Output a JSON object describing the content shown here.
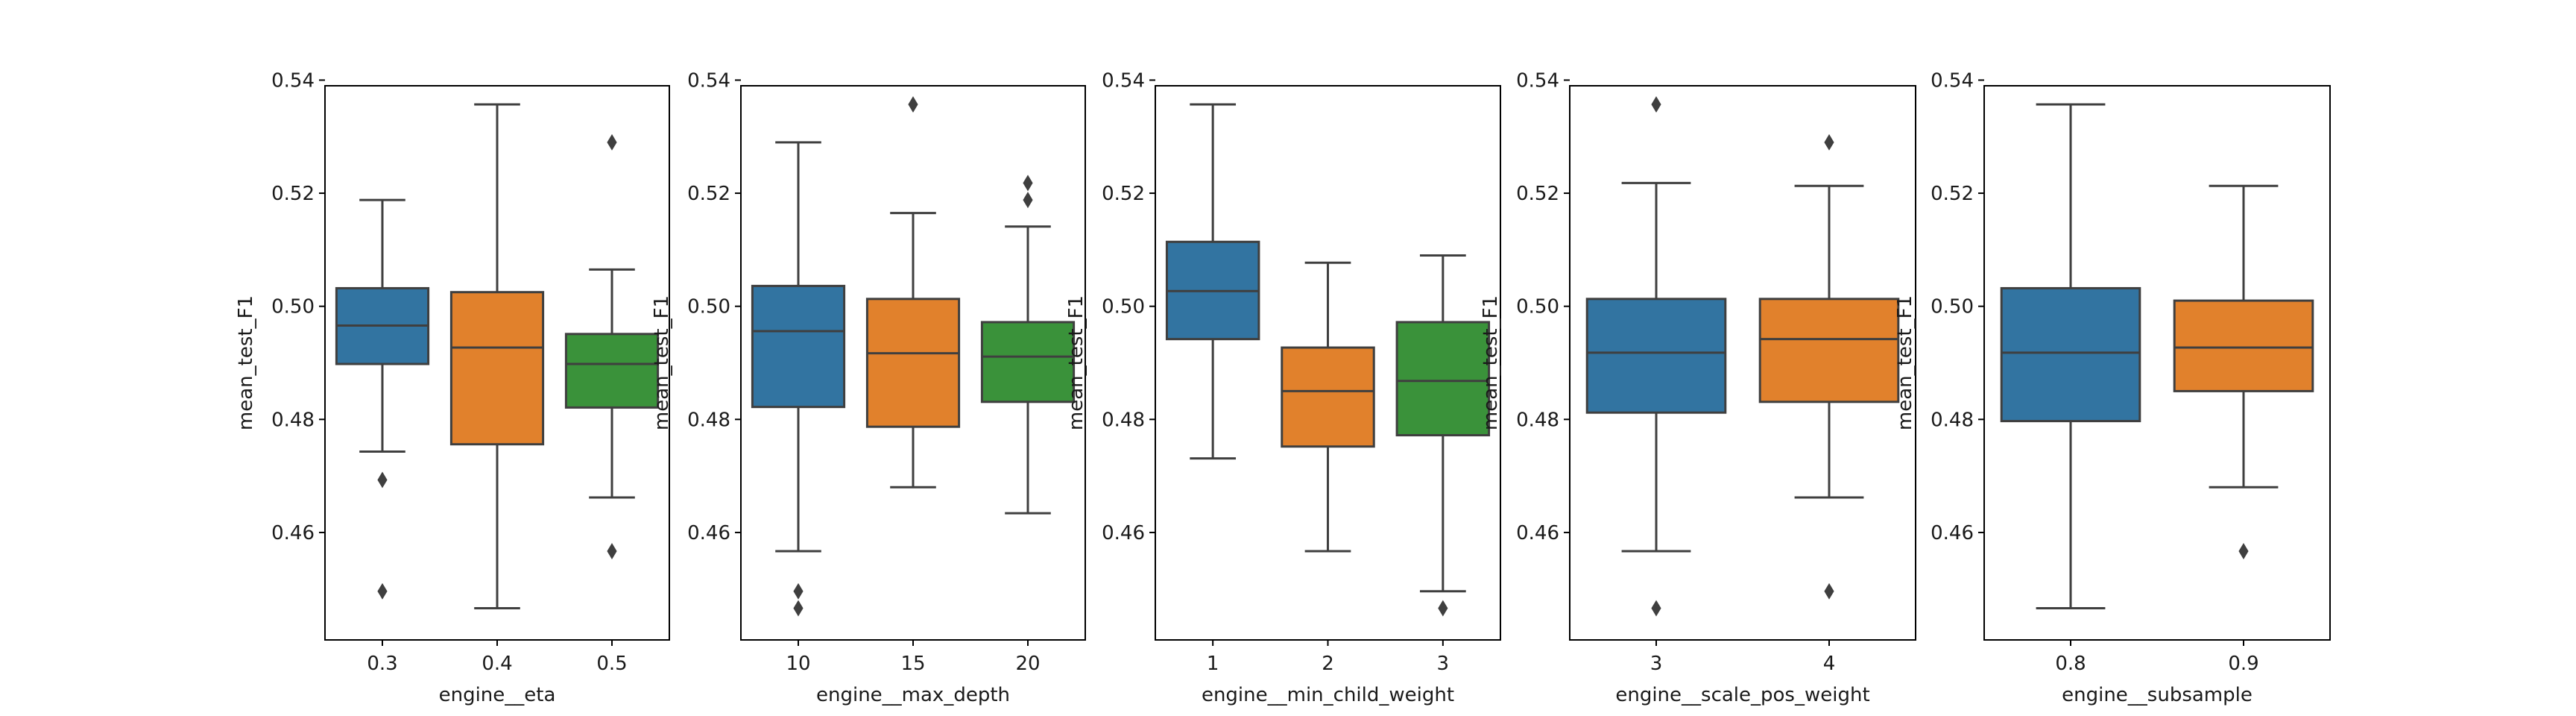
{
  "colors": {
    "blue": "#3274a1",
    "orange": "#e1812c",
    "green": "#3a923a",
    "line": "#3f3f3f",
    "frame": "#000000"
  },
  "chart_data": [
    {
      "type": "box",
      "xlabel": "engine__eta",
      "ylabel": "mean_test_F1",
      "ylim": [
        0.441,
        0.539
      ],
      "yticks": [
        "0.46",
        "0.48",
        "0.50",
        "0.52",
        "0.54"
      ],
      "categories": [
        "0.3",
        "0.4",
        "0.5"
      ],
      "boxes": [
        {
          "q1": 0.4898,
          "median": 0.4966,
          "q3": 0.5032,
          "whislo": 0.4743,
          "whishi": 0.5188,
          "fliers": [
            0.4693,
            0.4496
          ],
          "color": "#3274a1"
        },
        {
          "q1": 0.4756,
          "median": 0.4927,
          "q3": 0.5025,
          "whislo": 0.4466,
          "whishi": 0.5357,
          "fliers": [],
          "color": "#e1812c"
        },
        {
          "q1": 0.4821,
          "median": 0.4898,
          "q3": 0.4951,
          "whislo": 0.4662,
          "whishi": 0.5065,
          "fliers": [
            0.529,
            0.4567
          ],
          "color": "#3a923a"
        }
      ]
    },
    {
      "type": "box",
      "xlabel": "engine__max_depth",
      "ylabel": "mean_test_F1",
      "ylim": [
        0.441,
        0.539
      ],
      "yticks": [
        "0.46",
        "0.48",
        "0.50",
        "0.52",
        "0.54"
      ],
      "categories": [
        "10",
        "15",
        "20"
      ],
      "boxes": [
        {
          "q1": 0.4822,
          "median": 0.4956,
          "q3": 0.5036,
          "whislo": 0.4567,
          "whishi": 0.529,
          "fliers": [
            0.4496,
            0.4466
          ],
          "color": "#3274a1"
        },
        {
          "q1": 0.4787,
          "median": 0.4917,
          "q3": 0.5013,
          "whislo": 0.468,
          "whishi": 0.5165,
          "fliers": [
            0.5357
          ],
          "color": "#e1812c"
        },
        {
          "q1": 0.4831,
          "median": 0.4911,
          "q3": 0.4972,
          "whislo": 0.4634,
          "whishi": 0.5141,
          "fliers": [
            0.5218,
            0.5188
          ],
          "color": "#3a923a"
        }
      ]
    },
    {
      "type": "box",
      "xlabel": "engine__min_child_weight",
      "ylabel": "mean_test_F1",
      "ylim": [
        0.441,
        0.539
      ],
      "yticks": [
        "0.46",
        "0.48",
        "0.50",
        "0.52",
        "0.54"
      ],
      "categories": [
        "1",
        "2",
        "3"
      ],
      "boxes": [
        {
          "q1": 0.4942,
          "median": 0.5027,
          "q3": 0.5114,
          "whislo": 0.4731,
          "whishi": 0.5357,
          "fliers": [],
          "color": "#3274a1"
        },
        {
          "q1": 0.4752,
          "median": 0.485,
          "q3": 0.4927,
          "whislo": 0.4567,
          "whishi": 0.5077,
          "fliers": [],
          "color": "#e1812c"
        },
        {
          "q1": 0.4772,
          "median": 0.4868,
          "q3": 0.4972,
          "whislo": 0.4496,
          "whishi": 0.509,
          "fliers": [
            0.4466
          ],
          "color": "#3a923a"
        }
      ]
    },
    {
      "type": "box",
      "xlabel": "engine__scale_pos_weight",
      "ylabel": "mean_test_F1",
      "ylim": [
        0.441,
        0.539
      ],
      "yticks": [
        "0.46",
        "0.48",
        "0.50",
        "0.52",
        "0.54"
      ],
      "categories": [
        "3",
        "4"
      ],
      "boxes": [
        {
          "q1": 0.4812,
          "median": 0.4918,
          "q3": 0.5013,
          "whislo": 0.4567,
          "whishi": 0.5218,
          "fliers": [
            0.5357,
            0.4466
          ],
          "color": "#3274a1"
        },
        {
          "q1": 0.4831,
          "median": 0.4942,
          "q3": 0.5013,
          "whislo": 0.4662,
          "whishi": 0.5213,
          "fliers": [
            0.529,
            0.4496
          ],
          "color": "#e1812c"
        }
      ]
    },
    {
      "type": "box",
      "xlabel": "engine__subsample",
      "ylabel": "mean_test_F1",
      "ylim": [
        0.441,
        0.539
      ],
      "yticks": [
        "0.46",
        "0.48",
        "0.50",
        "0.52",
        "0.54"
      ],
      "categories": [
        "0.8",
        "0.9"
      ],
      "boxes": [
        {
          "q1": 0.4797,
          "median": 0.4918,
          "q3": 0.5032,
          "whislo": 0.4466,
          "whishi": 0.5357,
          "fliers": [],
          "color": "#3274a1"
        },
        {
          "q1": 0.485,
          "median": 0.4927,
          "q3": 0.501,
          "whislo": 0.468,
          "whishi": 0.5213,
          "fliers": [
            0.4567
          ],
          "color": "#e1812c"
        }
      ]
    }
  ]
}
